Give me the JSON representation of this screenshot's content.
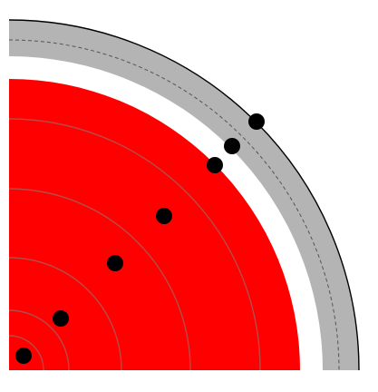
{
  "colors": {
    "background": "#ffffff",
    "outer_band": "#b4b4b4",
    "outer_arc_stroke": "#000000",
    "dashed_arc": "#555555",
    "disk_fill": "#ff0000",
    "inner_rings": "#b84a4a",
    "dots": "#000000"
  },
  "diagram": {
    "shape": "quarter-circle",
    "inner_ring_count": 5,
    "dot_count": 8
  }
}
